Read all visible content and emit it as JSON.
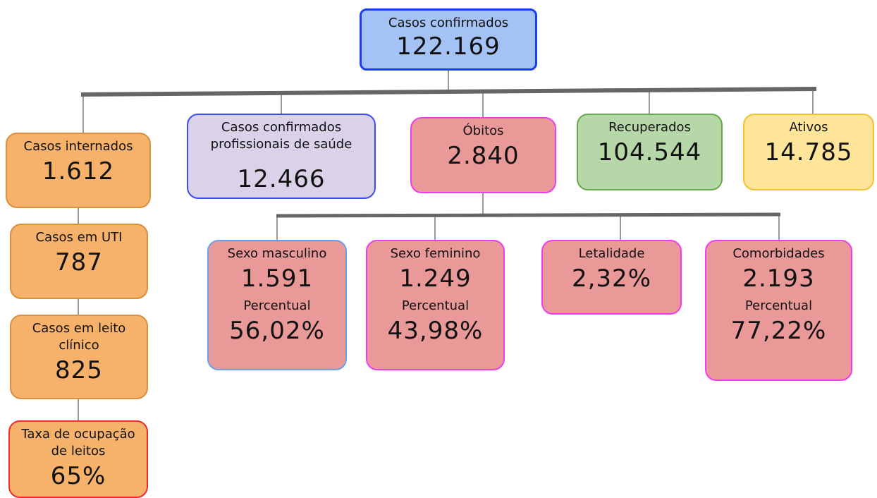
{
  "nodes": [
    {
      "label": "Casos confirmados",
      "value": "122.169"
    },
    {
      "label": "Casos internados",
      "value": "1.612"
    },
    {
      "label": "Casos em UTI",
      "value": "787"
    },
    {
      "label": "Casos em leito clínico",
      "value": "825"
    },
    {
      "label": "Taxa de ocupação de leitos",
      "value": "65%"
    },
    {
      "label": "Casos confirmados profissionais de saúde",
      "value": "12.466"
    },
    {
      "label": "Óbitos",
      "value": "2.840"
    },
    {
      "label": "Recuperados",
      "value": "104.544"
    },
    {
      "label": "Ativos",
      "value": "14.785"
    },
    {
      "label": "Sexo masculino",
      "value": "1.591",
      "sub_label": "Percentual",
      "sub_value": "56,02%"
    },
    {
      "label": "Sexo feminino",
      "value": "1.249",
      "sub_label": "Percentual",
      "sub_value": "43,98%"
    },
    {
      "label": "Letalidade",
      "value": "2,32%"
    },
    {
      "label": "Comorbidades",
      "value": "2.193",
      "sub_label": "Percentual",
      "sub_value": "77,22%"
    }
  ]
}
